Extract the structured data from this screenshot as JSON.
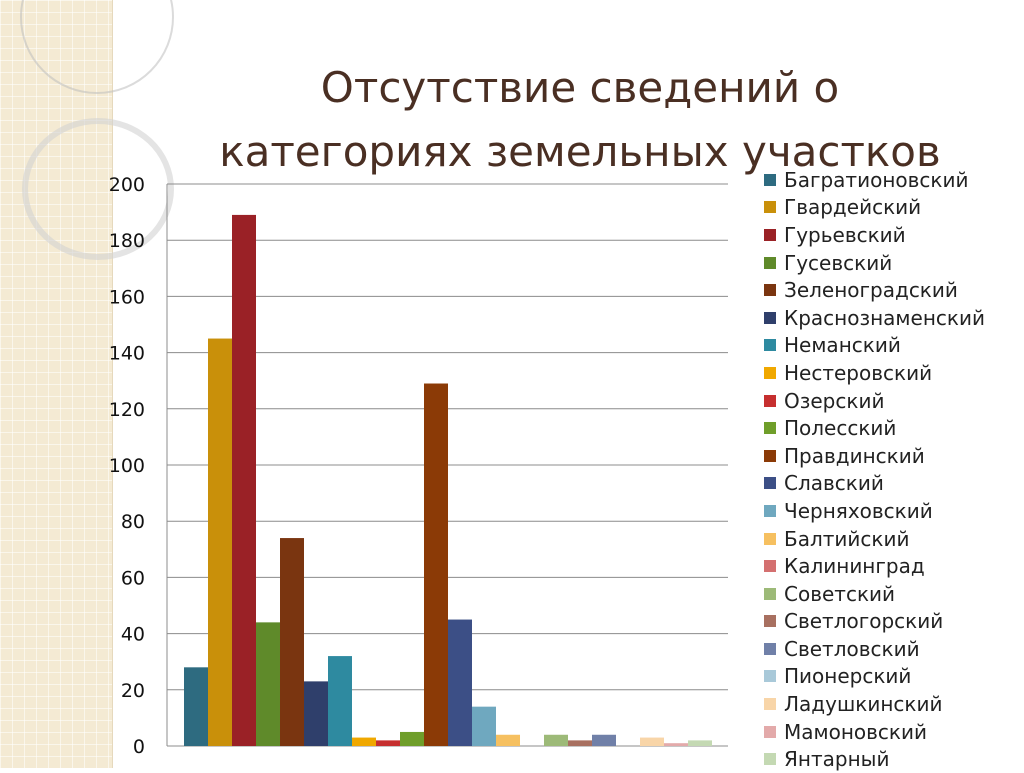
{
  "slide": {
    "title_line1": "Отсутствие сведений о",
    "title_line2": "категориях земельных участков"
  },
  "chart_data": {
    "type": "bar",
    "title": "",
    "xlabel": "",
    "ylabel": "",
    "ylim": [
      0,
      200
    ],
    "yticks": [
      0,
      20,
      40,
      60,
      80,
      100,
      120,
      140,
      160,
      180,
      200
    ],
    "grid": true,
    "legend_position": "right",
    "series": [
      {
        "name": "Багратионовский",
        "value": 28,
        "color": "#2e6b80"
      },
      {
        "name": "Гвардейский",
        "value": 145,
        "color": "#c9900a"
      },
      {
        "name": "Гурьевский",
        "value": 189,
        "color": "#9a2126"
      },
      {
        "name": "Гусевский",
        "value": 44,
        "color": "#5f8a2a"
      },
      {
        "name": "Зеленоградский",
        "value": 74,
        "color": "#7a3510"
      },
      {
        "name": "Краснознаменский",
        "value": 23,
        "color": "#2f3f6b"
      },
      {
        "name": "Неманский",
        "value": 32,
        "color": "#2e8aa0"
      },
      {
        "name": "Нестеровский",
        "value": 3,
        "color": "#f0a800"
      },
      {
        "name": "Озерский",
        "value": 2,
        "color": "#c62f2f"
      },
      {
        "name": "Полесский",
        "value": 5,
        "color": "#6f9e2a"
      },
      {
        "name": "Правдинский",
        "value": 129,
        "color": "#8b3a06"
      },
      {
        "name": "Славский",
        "value": 45,
        "color": "#3c4f86"
      },
      {
        "name": "Черняховский",
        "value": 14,
        "color": "#6fa8bf"
      },
      {
        "name": "Балтийский",
        "value": 4,
        "color": "#f6c060"
      },
      {
        "name": "Калининград",
        "value": 0,
        "color": "#d47070"
      },
      {
        "name": "Советский",
        "value": 4,
        "color": "#9dba78"
      },
      {
        "name": "Светлогорский",
        "value": 2,
        "color": "#a87060"
      },
      {
        "name": "Светловский",
        "value": 4,
        "color": "#7080a8"
      },
      {
        "name": "Пионерский",
        "value": 0,
        "color": "#a9c9d9"
      },
      {
        "name": "Ладушкинский",
        "value": 3,
        "color": "#f8d5a8"
      },
      {
        "name": "Мамоновский",
        "value": 1,
        "color": "#e3aaaa"
      },
      {
        "name": "Янтарный",
        "value": 2,
        "color": "#c4d9b3"
      }
    ]
  }
}
